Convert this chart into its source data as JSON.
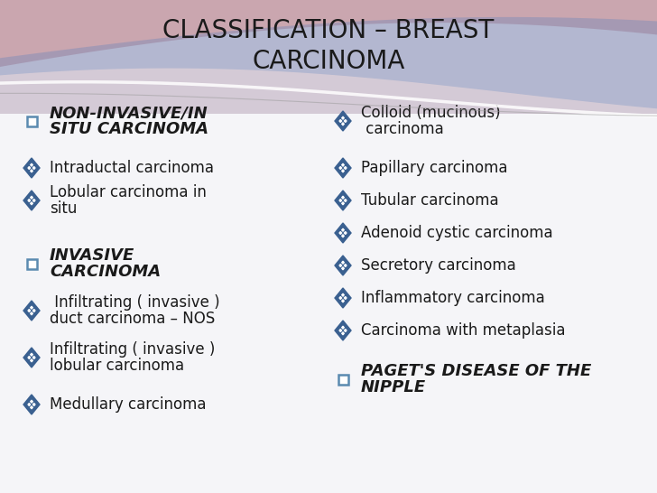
{
  "title_line1": "CLASSIFICATION – BREAST",
  "title_line2": "CARCINOMA",
  "title_color": "#1a1a1a",
  "title_fontsize": 20,
  "bg_color": "#f5f5f8",
  "left_column": [
    {
      "type": "checkbox",
      "text": "NON-INVASIVE/IN\nSITU CARCINOMA",
      "bold_italic": true
    },
    {
      "type": "diamond",
      "text": "Intraductal carcinoma",
      "bold_italic": false
    },
    {
      "type": "diamond",
      "text": "Lobular carcinoma in\nsitu",
      "bold_italic": false
    },
    {
      "type": "gap"
    },
    {
      "type": "checkbox",
      "text": "INVASIVE\nCARCINOMA",
      "bold_italic": true
    },
    {
      "type": "diamond",
      "text": " Infiltrating ( invasive )\nduct carcinoma – NOS",
      "bold_italic": false
    },
    {
      "type": "diamond",
      "text": "Infiltrating ( invasive )\nlobular carcinoma",
      "bold_italic": false
    },
    {
      "type": "diamond",
      "text": "Medullary carcinoma",
      "bold_italic": false
    }
  ],
  "right_column": [
    {
      "type": "diamond",
      "text": "Colloid (mucinous)\n carcinoma",
      "bold_italic": false
    },
    {
      "type": "diamond",
      "text": "Papillary carcinoma",
      "bold_italic": false
    },
    {
      "type": "diamond",
      "text": "Tubular carcinoma",
      "bold_italic": false
    },
    {
      "type": "diamond",
      "text": "Adenoid cystic carcinoma",
      "bold_italic": false
    },
    {
      "type": "diamond",
      "text": "Secretory carcinoma",
      "bold_italic": false
    },
    {
      "type": "diamond",
      "text": "Inflammatory carcinoma",
      "bold_italic": false
    },
    {
      "type": "diamond",
      "text": "Carcinoma with metaplasia",
      "bold_italic": false
    },
    {
      "type": "gap"
    },
    {
      "type": "checkbox",
      "text": "PAGET'S DISEASE OF THE\nNIPPLE",
      "bold_italic": true
    }
  ],
  "text_color": "#1a1a1a",
  "bullet_color": "#3a6090",
  "checkbox_color": "#5a8ab0",
  "item_fontsize": 12,
  "header_item_fontsize": 13
}
